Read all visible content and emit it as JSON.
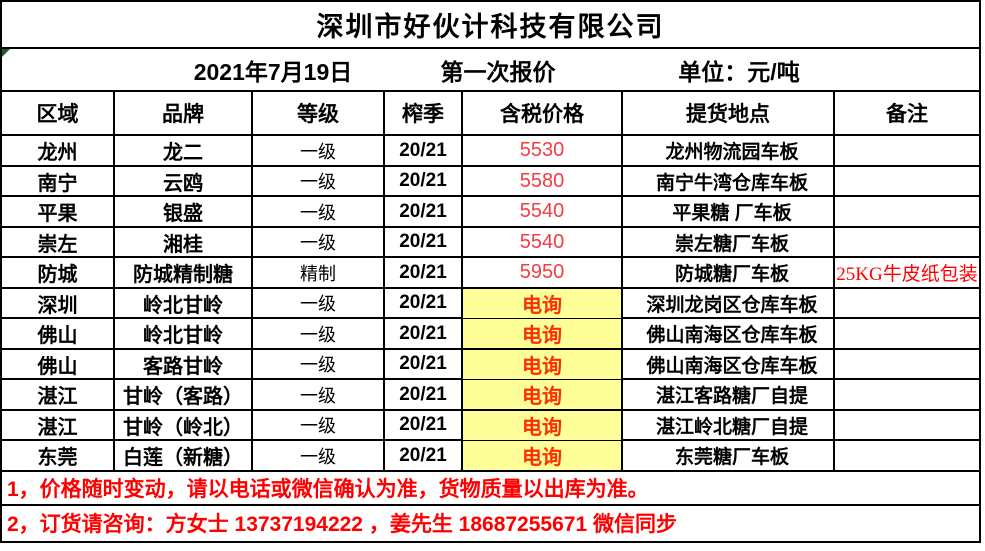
{
  "title": "深圳市好伙计科技有限公司",
  "subheader": {
    "date": "2021年7月19日",
    "round": "第一次报价",
    "unit": "单位：元/吨"
  },
  "table": {
    "columns": [
      "区域",
      "品牌",
      "等级",
      "榨季",
      "含税价格",
      "提货地点",
      "备注"
    ],
    "rows": [
      {
        "region": "龙州",
        "brand": "龙二",
        "grade": "一级",
        "season": "20/21",
        "price": "5530",
        "price_style": "number",
        "location": "龙州物流园车板",
        "remark": ""
      },
      {
        "region": "南宁",
        "brand": "云鸥",
        "grade": "一级",
        "season": "20/21",
        "price": "5580",
        "price_style": "number",
        "location": "南宁牛湾仓库车板",
        "remark": ""
      },
      {
        "region": "平果",
        "brand": "银盛",
        "grade": "一级",
        "season": "20/21",
        "price": "5540",
        "price_style": "number",
        "location": "平果糖 厂车板",
        "remark": ""
      },
      {
        "region": "崇左",
        "brand": "湘桂",
        "grade": "一级",
        "season": "20/21",
        "price": "5540",
        "price_style": "number",
        "location": "崇左糖厂车板",
        "remark": ""
      },
      {
        "region": "防城",
        "brand": "防城精制糖",
        "grade": "精制",
        "season": "20/21",
        "price": "5950",
        "price_style": "number",
        "location": "防城糖厂车板",
        "remark": "25KG牛皮纸包装"
      },
      {
        "region": "深圳",
        "brand": "岭北甘岭",
        "grade": "一级",
        "season": "20/21",
        "price": "电询",
        "price_style": "inquiry",
        "location": "深圳龙岗区仓库车板",
        "remark": ""
      },
      {
        "region": "佛山",
        "brand": "岭北甘岭",
        "grade": "一级",
        "season": "20/21",
        "price": "电询",
        "price_style": "inquiry",
        "location": "佛山南海区仓库车板",
        "remark": ""
      },
      {
        "region": "佛山",
        "brand": "客路甘岭",
        "grade": "一级",
        "season": "20/21",
        "price": "电询",
        "price_style": "inquiry",
        "location": "佛山南海区仓库车板",
        "remark": ""
      },
      {
        "region": "湛江",
        "brand": "甘岭（客路）",
        "grade": "一级",
        "season": "20/21",
        "price": "电询",
        "price_style": "inquiry",
        "location": "湛江客路糖厂自提",
        "remark": ""
      },
      {
        "region": "湛江",
        "brand": "甘岭（岭北）",
        "grade": "一级",
        "season": "20/21",
        "price": "电询",
        "price_style": "inquiry",
        "location": "湛江岭北糖厂自提",
        "remark": ""
      },
      {
        "region": "东莞",
        "brand": "白莲（新糖）",
        "grade": "一级",
        "season": "20/21",
        "price": "电询",
        "price_style": "inquiry",
        "location": "东莞糖厂车板",
        "remark": ""
      }
    ]
  },
  "footnotes": [
    "1，价格随时变动，请以电话或微信确认为准，货物质量以出库为准。",
    "2，订货请咨询：方女士 13737194222 ，姜先生 18687255671  微信同步"
  ],
  "colors": {
    "price_red": "#f53b43",
    "inquiry_red": "#ff2d00",
    "note_red": "#ff0000",
    "inquiry_bg": "#ffff99",
    "border_black": "#000000",
    "indicator_green": "#1d5b30"
  }
}
